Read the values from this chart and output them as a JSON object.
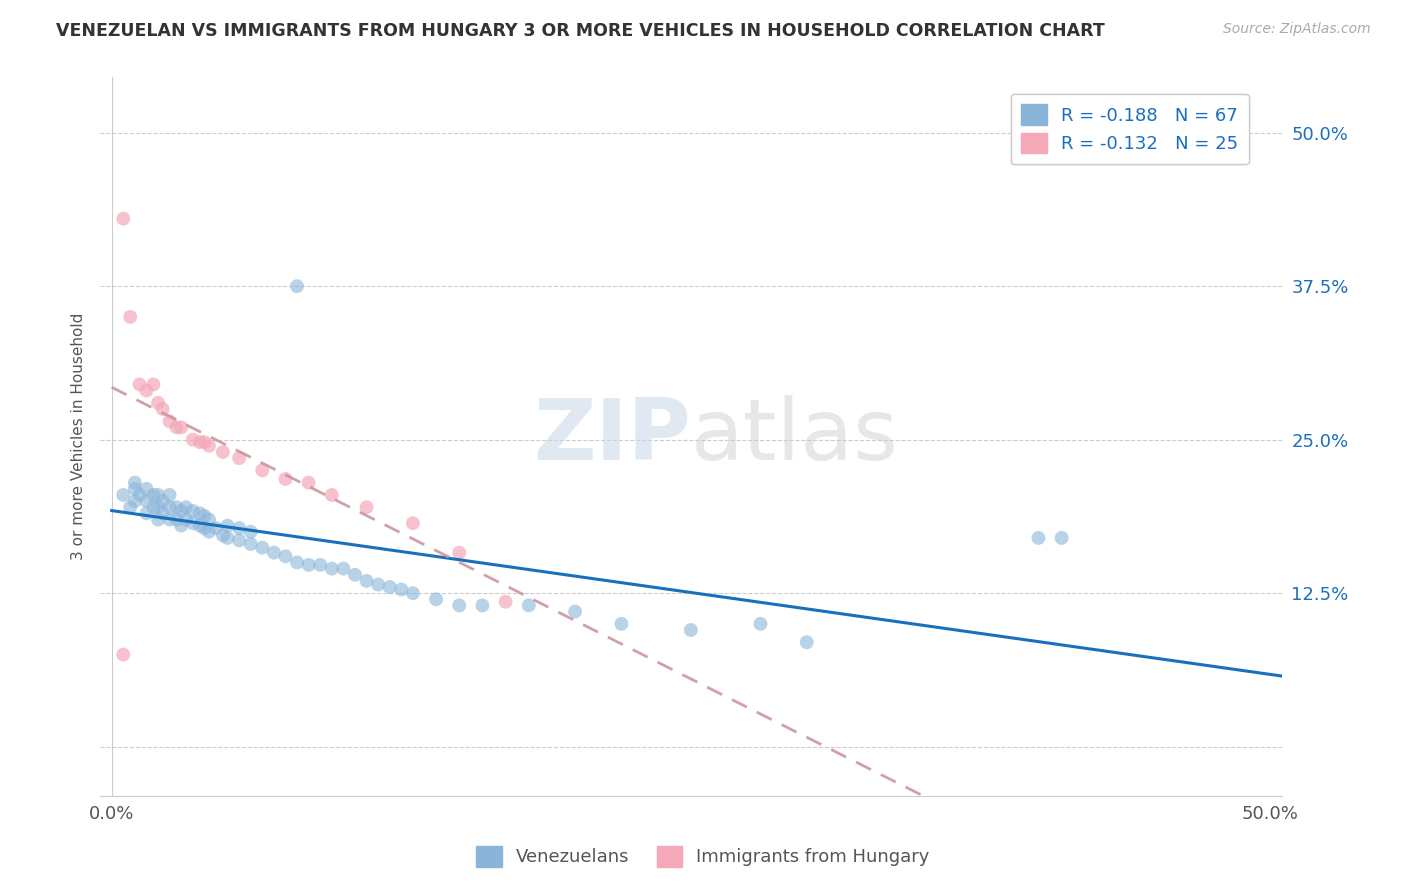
{
  "title": "VENEZUELAN VS IMMIGRANTS FROM HUNGARY 3 OR MORE VEHICLES IN HOUSEHOLD CORRELATION CHART",
  "source_text": "Source: ZipAtlas.com",
  "ylabel": "3 or more Vehicles in Household",
  "ytick_values": [
    0.0,
    0.125,
    0.25,
    0.375,
    0.5
  ],
  "ytick_labels": [
    "",
    "12.5%",
    "25.0%",
    "37.5%",
    "50.0%"
  ],
  "xlim": [
    -0.005,
    0.505
  ],
  "ylim": [
    -0.04,
    0.545
  ],
  "legend_label1": "R = -0.188   N = 67",
  "legend_label2": "R = -0.132   N = 25",
  "legend_label1_short": "Venezuelans",
  "legend_label2_short": "Immigrants from Hungary",
  "color_blue": "#8ab4d8",
  "color_pink": "#f4a8b8",
  "color_blue_line": "#1a6fbd",
  "color_pink_line": "#c8909a",
  "watermark_zip": "ZIP",
  "watermark_atlas": "atlas",
  "venezuelan_x": [
    0.005,
    0.008,
    0.01,
    0.01,
    0.01,
    0.012,
    0.015,
    0.015,
    0.015,
    0.018,
    0.018,
    0.02,
    0.02,
    0.02,
    0.022,
    0.022,
    0.025,
    0.025,
    0.025,
    0.028,
    0.028,
    0.03,
    0.03,
    0.032,
    0.032,
    0.035,
    0.035,
    0.038,
    0.038,
    0.04,
    0.04,
    0.042,
    0.042,
    0.045,
    0.048,
    0.05,
    0.05,
    0.055,
    0.055,
    0.06,
    0.06,
    0.065,
    0.07,
    0.075,
    0.08,
    0.085,
    0.09,
    0.095,
    0.1,
    0.105,
    0.11,
    0.115,
    0.12,
    0.125,
    0.13,
    0.14,
    0.15,
    0.16,
    0.18,
    0.2,
    0.22,
    0.25,
    0.28,
    0.3,
    0.4,
    0.41,
    0.08
  ],
  "venezuelan_y": [
    0.205,
    0.195,
    0.2,
    0.21,
    0.215,
    0.205,
    0.19,
    0.2,
    0.21,
    0.195,
    0.205,
    0.185,
    0.195,
    0.205,
    0.19,
    0.2,
    0.185,
    0.195,
    0.205,
    0.185,
    0.195,
    0.18,
    0.192,
    0.185,
    0.195,
    0.182,
    0.192,
    0.18,
    0.19,
    0.178,
    0.188,
    0.175,
    0.185,
    0.178,
    0.172,
    0.17,
    0.18,
    0.168,
    0.178,
    0.165,
    0.175,
    0.162,
    0.158,
    0.155,
    0.15,
    0.148,
    0.148,
    0.145,
    0.145,
    0.14,
    0.135,
    0.132,
    0.13,
    0.128,
    0.125,
    0.12,
    0.115,
    0.115,
    0.115,
    0.11,
    0.1,
    0.095,
    0.1,
    0.085,
    0.17,
    0.17,
    0.375
  ],
  "hungarian_x": [
    0.005,
    0.008,
    0.012,
    0.015,
    0.018,
    0.02,
    0.022,
    0.025,
    0.028,
    0.03,
    0.035,
    0.038,
    0.04,
    0.042,
    0.048,
    0.055,
    0.065,
    0.075,
    0.085,
    0.095,
    0.11,
    0.13,
    0.15,
    0.17,
    0.005
  ],
  "hungarian_y": [
    0.43,
    0.35,
    0.295,
    0.29,
    0.295,
    0.28,
    0.275,
    0.265,
    0.26,
    0.26,
    0.25,
    0.248,
    0.248,
    0.245,
    0.24,
    0.235,
    0.225,
    0.218,
    0.215,
    0.205,
    0.195,
    0.182,
    0.158,
    0.118,
    0.075
  ],
  "vline_x_start": 0.0,
  "vline_x_end": 0.505,
  "hline_x_start": 0.0,
  "hline_x_end": 0.505
}
